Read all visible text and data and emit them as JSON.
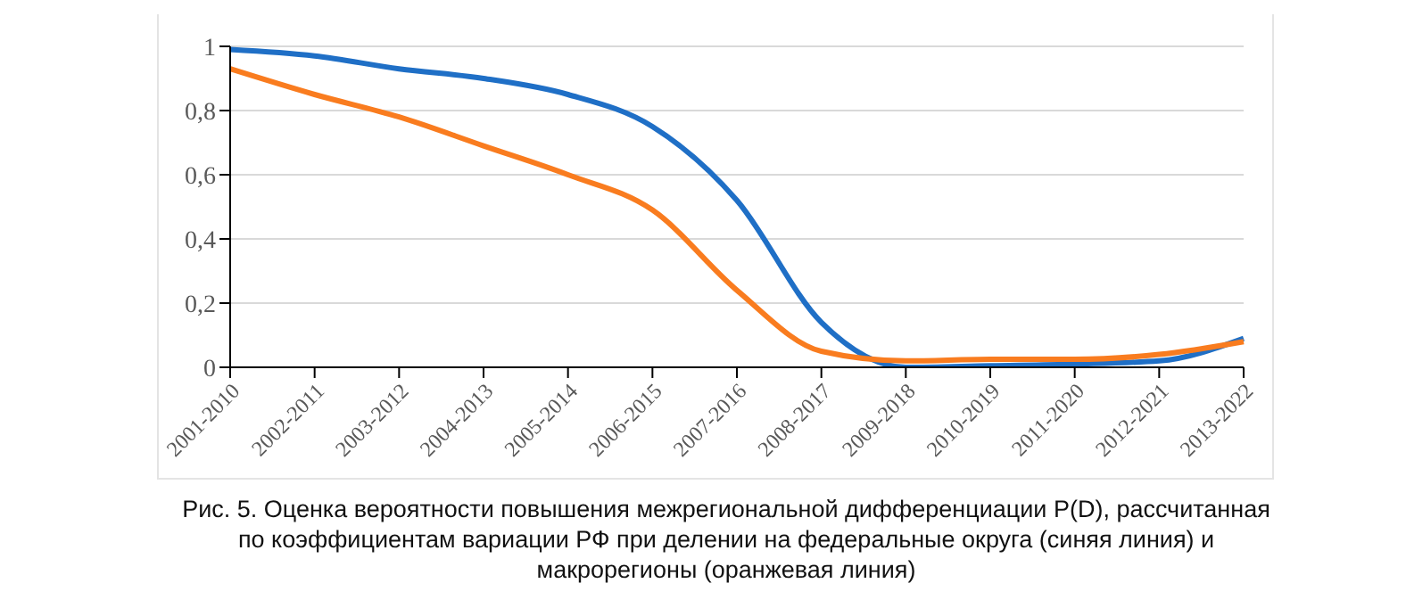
{
  "chart_data": {
    "type": "line",
    "categories": [
      "2001-2010",
      "2002-2011",
      "2003-2012",
      "2004-2013",
      "2005-2014",
      "2006-2015",
      "2007-2016",
      "2008-2017",
      "2009-2018",
      "2010-2019",
      "2011-2020",
      "2012-2021",
      "2013-2022"
    ],
    "series": [
      {
        "color": "#1f6fc6",
        "values": [
          0.99,
          0.97,
          0.93,
          0.9,
          0.85,
          0.75,
          0.52,
          0.14,
          0.0,
          0.005,
          0.01,
          0.02,
          0.09
        ]
      },
      {
        "color": "#f97c1f",
        "values": [
          0.93,
          0.85,
          0.78,
          0.69,
          0.6,
          0.49,
          0.24,
          0.05,
          0.02,
          0.025,
          0.025,
          0.04,
          0.08
        ]
      }
    ],
    "ylim": [
      0,
      1
    ],
    "yticks": [
      0,
      {
        "value": 0.2,
        "label": "0,2"
      },
      {
        "value": 0.4,
        "label": "0,4"
      },
      {
        "value": 0.6,
        "label": "0,6"
      },
      {
        "value": 0.8,
        "label": "0,8"
      },
      1
    ],
    "grid": "y",
    "marker": "none",
    "line_style": "solid",
    "annotations": [
      "Рис. 5. Оценка вероятности повышения межрегиональной дифференциации P(D), рассчитанная по коэффициентам вариации РФ при делении на федеральные округа (синяя линия) и макрорегионы (оранжевая линия)"
    ]
  }
}
